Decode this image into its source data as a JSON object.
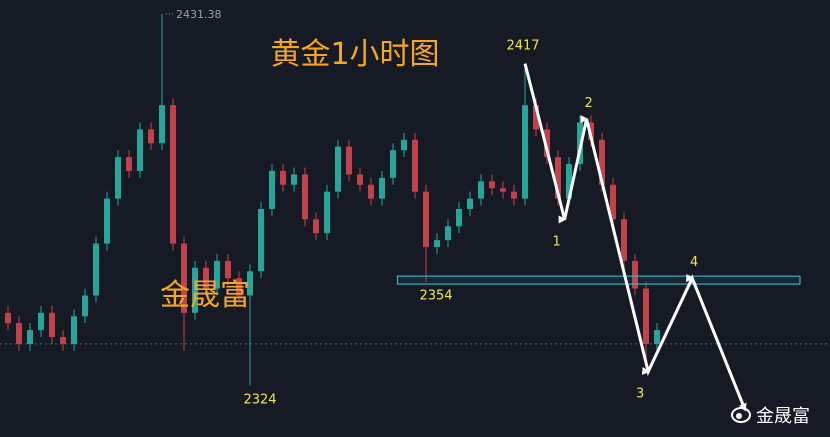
{
  "chart_data": {
    "type": "candlestick",
    "title": "黄金1小时图",
    "watermark_center": "金晟富",
    "watermark_corner": "金晟富",
    "ylim": [
      2309.1,
      2435.4
    ],
    "up_color": "#26a69a",
    "down_color": "#c2424b",
    "open": [
      2345,
      2342,
      2336,
      2340,
      2345,
      2338,
      2336,
      2344,
      2350,
      2365,
      2378,
      2390,
      2386,
      2398,
      2394,
      2405,
      2365,
      2345,
      2358,
      2352,
      2360,
      2355,
      2350,
      2357,
      2375,
      2386,
      2382,
      2385,
      2372,
      2368,
      2380,
      2393,
      2385,
      2382,
      2378,
      2384,
      2392,
      2395,
      2380,
      2364,
      2366,
      2370,
      2375,
      2378,
      2383,
      2381,
      2380,
      2378,
      2405,
      2398,
      2390,
      2378,
      2388,
      2400,
      2395,
      2382,
      2372,
      2360,
      2352,
      2336
    ],
    "high": [
      2347,
      2344,
      2342,
      2347,
      2347,
      2340,
      2346,
      2352,
      2367,
      2380,
      2392,
      2392,
      2400,
      2400,
      2431.38,
      2407,
      2367,
      2360,
      2360,
      2362,
      2362,
      2357,
      2359,
      2377,
      2388,
      2388,
      2387,
      2387,
      2374,
      2382,
      2395,
      2395,
      2387,
      2384,
      2386,
      2394,
      2397,
      2397,
      2382,
      2368,
      2372,
      2377,
      2380,
      2385,
      2385,
      2383,
      2382,
      2417,
      2407,
      2400,
      2392,
      2390,
      2402,
      2402,
      2397,
      2384,
      2374,
      2362,
      2354,
      2342
    ],
    "low": [
      2340,
      2334,
      2334,
      2338,
      2336,
      2334,
      2334,
      2342,
      2348,
      2363,
      2376,
      2384,
      2384,
      2392,
      2392,
      2363,
      2334,
      2343,
      2350,
      2350,
      2353,
      2348,
      2324,
      2355,
      2373,
      2380,
      2380,
      2370,
      2366,
      2366,
      2378,
      2383,
      2380,
      2376,
      2376,
      2382,
      2390,
      2378,
      2354,
      2362,
      2364,
      2368,
      2373,
      2376,
      2379,
      2378,
      2376,
      2376,
      2396,
      2388,
      2376,
      2376,
      2386,
      2393,
      2380,
      2370,
      2358,
      2350,
      2331,
      2334
    ],
    "close": [
      2342,
      2336,
      2340,
      2345,
      2338,
      2336,
      2344,
      2350,
      2365,
      2378,
      2390,
      2386,
      2398,
      2394,
      2405,
      2365,
      2345,
      2358,
      2352,
      2360,
      2355,
      2350,
      2357,
      2375,
      2386,
      2382,
      2385,
      2372,
      2368,
      2380,
      2393,
      2385,
      2382,
      2378,
      2384,
      2392,
      2395,
      2380,
      2364,
      2366,
      2370,
      2375,
      2378,
      2383,
      2381,
      2380,
      2378,
      2405,
      2398,
      2390,
      2378,
      2388,
      2400,
      2395,
      2382,
      2372,
      2360,
      2352,
      2336,
      2340
    ],
    "dashed_line": 2336,
    "zone": {
      "low": 2353.3,
      "high": 2355.6,
      "from": 35.4,
      "to": 72
    },
    "annotations": [
      {
        "text": "2431.38",
        "value": 2431.38,
        "index": 14
      },
      {
        "text": "2417",
        "value": 2417,
        "index": 47
      },
      {
        "text": "2354",
        "value": 2354,
        "index": 38
      },
      {
        "text": "2324",
        "value": 2324,
        "index": 22
      }
    ],
    "wave": {
      "x": [
        47,
        50.6,
        52.6,
        58.2,
        62.2,
        67
      ],
      "y": [
        2417,
        2372,
        2401,
        2328,
        2355,
        2317
      ],
      "labels": [
        "1",
        "2",
        "3",
        "4"
      ]
    }
  }
}
